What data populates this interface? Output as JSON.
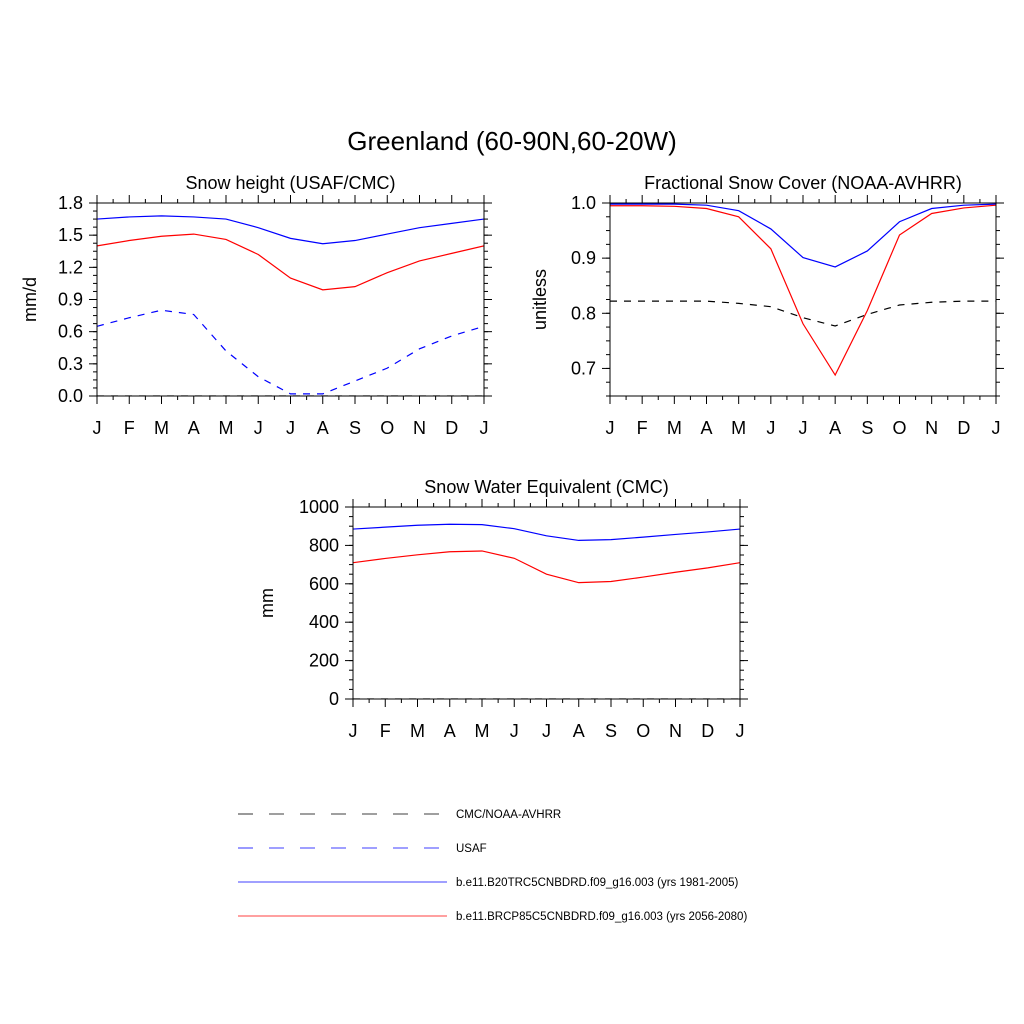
{
  "figure": {
    "title": "Greenland (60-90N,60-20W)"
  },
  "colors": {
    "obs": "#000000",
    "usaf": "#0000ff",
    "hist": "#0000ff",
    "future": "#ff0000"
  },
  "legend": {
    "placement": "bottom-center",
    "entries": [
      {
        "label": "CMC/NOAA-AVHRR",
        "color": "#000000",
        "style": "dashed"
      },
      {
        "label": "USAF",
        "color": "#0000ff",
        "style": "dashed"
      },
      {
        "label": "b.e11.B20TRC5CNBDRD.f09_g16.003 (yrs 1981-2005)",
        "color": "#0000ff",
        "style": "solid"
      },
      {
        "label": "b.e11.BRCP85C5CNBDRD.f09_g16.003 (yrs 2056-2080)",
        "color": "#ff0000",
        "style": "solid"
      }
    ]
  },
  "chart_data": [
    {
      "type": "line",
      "title": "Snow height (USAF/CMC)",
      "xlabel": "",
      "ylabel": "mm/d",
      "categories": [
        "J",
        "F",
        "M",
        "A",
        "M",
        "J",
        "J",
        "A",
        "S",
        "O",
        "N",
        "D",
        "J"
      ],
      "ylim": [
        0,
        1.8
      ],
      "yticks": [
        0.0,
        0.3,
        0.6,
        0.9,
        1.2,
        1.5,
        1.8
      ],
      "ytick_labels": [
        "0.0",
        "0.3",
        "0.6",
        "0.9",
        "1.2",
        "1.5",
        "1.8"
      ],
      "series": [
        {
          "name": "b.e11.B20TRC5CNBDRD.f09_g16.003 (yrs 1981-2005)",
          "color": "#0000ff",
          "style": "solid",
          "values": [
            1.65,
            1.67,
            1.68,
            1.67,
            1.65,
            1.57,
            1.47,
            1.42,
            1.45,
            1.51,
            1.57,
            1.61,
            1.65
          ]
        },
        {
          "name": "b.e11.BRCP85C5CNBDRD.f09_g16.003 (yrs 2056-2080)",
          "color": "#ff0000",
          "style": "solid",
          "values": [
            1.4,
            1.45,
            1.49,
            1.51,
            1.46,
            1.32,
            1.1,
            0.99,
            1.02,
            1.15,
            1.26,
            1.33,
            1.4
          ]
        },
        {
          "name": "USAF",
          "color": "#0000ff",
          "style": "dashed",
          "values": [
            0.65,
            0.73,
            0.8,
            0.76,
            0.42,
            0.18,
            0.02,
            0.02,
            0.14,
            0.26,
            0.44,
            0.56,
            0.65
          ]
        },
        {
          "name": "CMC/NOAA-AVHRR",
          "color": "#000000",
          "style": "dashed",
          "values": [
            0.0,
            0.0,
            0.0,
            0.0,
            0.0,
            0.0,
            0.0,
            0.0,
            0.0,
            0.0,
            0.0,
            0.0,
            0.0
          ]
        }
      ]
    },
    {
      "type": "line",
      "title": "Fractional Snow Cover (NOAA-AVHRR)",
      "xlabel": "",
      "ylabel": "unitless",
      "categories": [
        "J",
        "F",
        "M",
        "A",
        "M",
        "J",
        "J",
        "A",
        "S",
        "O",
        "N",
        "D",
        "J"
      ],
      "ylim": [
        0.65,
        1.0
      ],
      "yticks": [
        0.7,
        0.8,
        0.9,
        1.0
      ],
      "ytick_labels": [
        "0.7",
        "0.8",
        "0.9",
        "1.0"
      ],
      "series": [
        {
          "name": "b.e11.B20TRC5CNBDRD.f09_g16.003 (yrs 1981-2005)",
          "color": "#0000ff",
          "style": "solid",
          "values": [
            0.998,
            0.998,
            0.998,
            0.996,
            0.986,
            0.953,
            0.901,
            0.884,
            0.913,
            0.966,
            0.99,
            0.996,
            0.998
          ]
        },
        {
          "name": "b.e11.BRCP85C5CNBDRD.f09_g16.003 (yrs 2056-2080)",
          "color": "#ff0000",
          "style": "solid",
          "values": [
            0.995,
            0.995,
            0.994,
            0.99,
            0.975,
            0.917,
            0.781,
            0.688,
            0.805,
            0.942,
            0.981,
            0.991,
            0.996
          ]
        },
        {
          "name": "CMC/NOAA-AVHRR",
          "color": "#000000",
          "style": "dashed",
          "values": [
            0.822,
            0.822,
            0.822,
            0.822,
            0.818,
            0.812,
            0.792,
            0.777,
            0.798,
            0.815,
            0.82,
            0.822,
            0.822
          ]
        }
      ]
    },
    {
      "type": "line",
      "title": "Snow Water Equivalent (CMC)",
      "xlabel": "",
      "ylabel": "mm",
      "categories": [
        "J",
        "F",
        "M",
        "A",
        "M",
        "J",
        "J",
        "A",
        "S",
        "O",
        "N",
        "D",
        "J"
      ],
      "ylim": [
        0,
        1000
      ],
      "yticks": [
        0,
        200,
        400,
        600,
        800,
        1000
      ],
      "ytick_labels": [
        "0",
        "200",
        "400",
        "600",
        "800",
        "1000"
      ],
      "series": [
        {
          "name": "b.e11.B20TRC5CNBDRD.f09_g16.003 (yrs 1981-2005)",
          "color": "#0000ff",
          "style": "solid",
          "values": [
            885,
            895,
            905,
            910,
            908,
            887,
            850,
            826,
            830,
            843,
            857,
            870,
            885
          ]
        },
        {
          "name": "b.e11.BRCP85C5CNBDRD.f09_g16.003 (yrs 2056-2080)",
          "color": "#ff0000",
          "style": "solid",
          "values": [
            710,
            732,
            751,
            767,
            771,
            733,
            650,
            606,
            612,
            635,
            660,
            683,
            710
          ]
        },
        {
          "name": "CMC/NOAA-AVHRR",
          "color": "#000000",
          "style": "dashed",
          "values": [
            0,
            0,
            0,
            0,
            0,
            0,
            0,
            0,
            0,
            0,
            0,
            0,
            0
          ]
        }
      ]
    }
  ]
}
